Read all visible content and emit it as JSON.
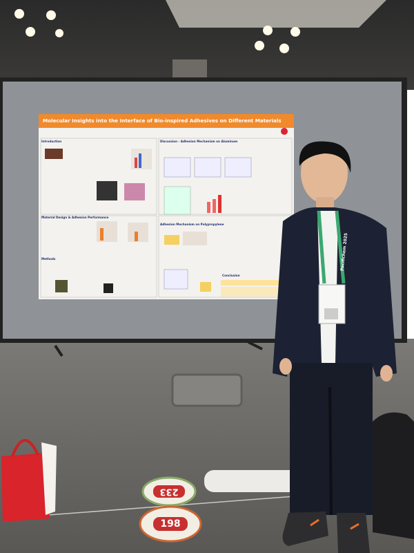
{
  "poster": {
    "title": "Molecular Insights into the Interface of Bio-inspired Adhesives on Different Materials",
    "sections": [
      "Introduction",
      "Material Design & Adhesion Performance",
      "Methods",
      "Discussion - Adhesion Mechanism on Aluminum",
      "Adhesion Mechanism on Polypropylene",
      "Conclusion"
    ]
  },
  "lanyard": "Pacifichem 2025",
  "floor_markers": [
    "233",
    "198"
  ]
}
